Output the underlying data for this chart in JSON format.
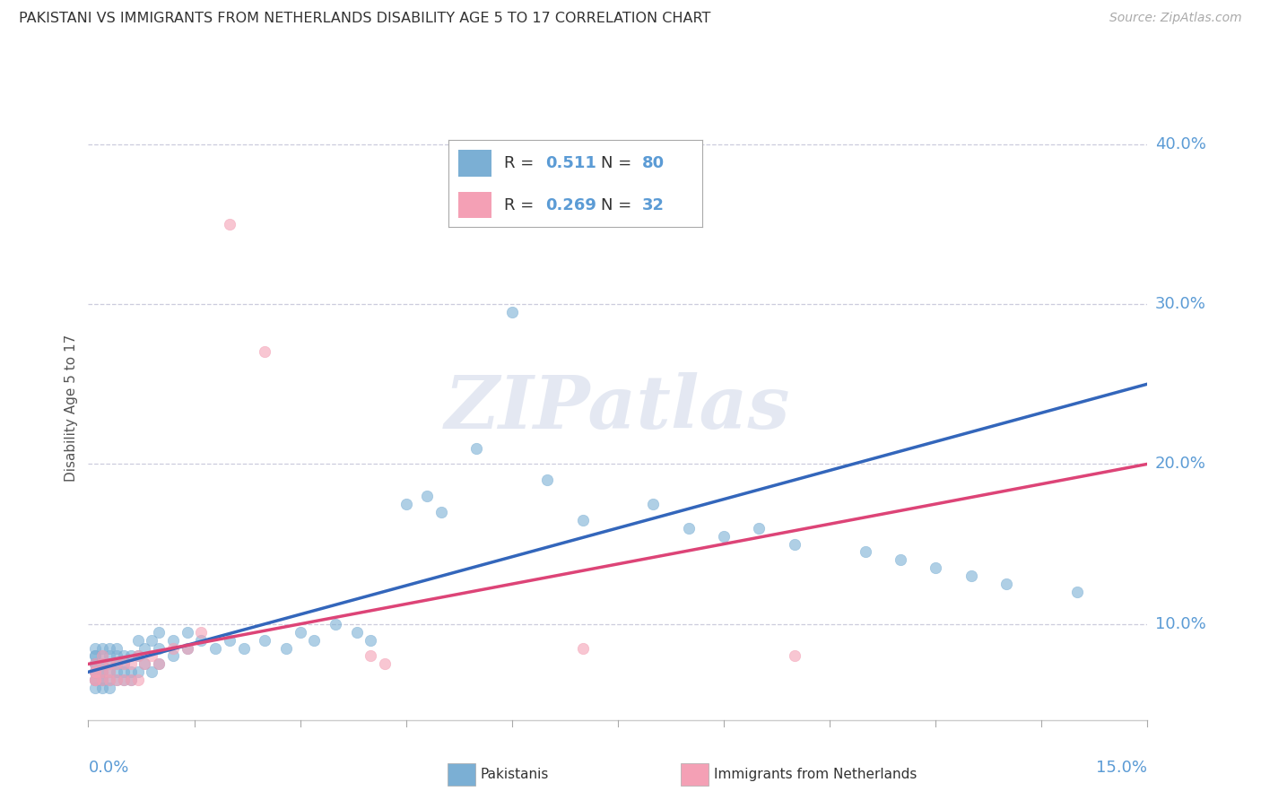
{
  "title": "PAKISTANI VS IMMIGRANTS FROM NETHERLANDS DISABILITY AGE 5 TO 17 CORRELATION CHART",
  "source": "Source: ZipAtlas.com",
  "ylabel": "Disability Age 5 to 17",
  "r_pakistani": 0.511,
  "n_pakistani": 80,
  "r_netherlands": 0.269,
  "n_netherlands": 32,
  "blue_color": "#7BAFD4",
  "blue_line_color": "#3366BB",
  "pink_color": "#F4A0B5",
  "pink_line_color": "#DD4477",
  "label_color": "#5B9BD5",
  "watermark": "ZIPatlas",
  "xmin": 0.0,
  "xmax": 0.15,
  "ymin": 0.04,
  "ymax": 0.43,
  "ytick_vals": [
    0.1,
    0.2,
    0.3,
    0.4
  ],
  "ytick_labels": [
    "10.0%",
    "20.0%",
    "30.0%",
    "40.0%"
  ],
  "xtick_left": "0.0%",
  "xtick_right": "15.0%",
  "legend_blue_label": "Pakistanis",
  "legend_pink_label": "Immigrants from Netherlands",
  "pak_x": [
    0.001,
    0.001,
    0.001,
    0.001,
    0.001,
    0.001,
    0.001,
    0.001,
    0.001,
    0.001,
    0.002,
    0.002,
    0.002,
    0.002,
    0.002,
    0.002,
    0.002,
    0.002,
    0.002,
    0.003,
    0.003,
    0.003,
    0.003,
    0.003,
    0.003,
    0.004,
    0.004,
    0.004,
    0.004,
    0.004,
    0.005,
    0.005,
    0.005,
    0.005,
    0.006,
    0.006,
    0.006,
    0.007,
    0.007,
    0.007,
    0.008,
    0.008,
    0.009,
    0.009,
    0.01,
    0.01,
    0.01,
    0.012,
    0.012,
    0.014,
    0.014,
    0.016,
    0.018,
    0.02,
    0.022,
    0.025,
    0.028,
    0.03,
    0.032,
    0.035,
    0.038,
    0.04,
    0.045,
    0.048,
    0.05,
    0.055,
    0.06,
    0.065,
    0.07,
    0.08,
    0.085,
    0.09,
    0.095,
    0.1,
    0.11,
    0.115,
    0.12,
    0.125,
    0.13,
    0.14
  ],
  "pak_y": [
    0.065,
    0.065,
    0.07,
    0.07,
    0.075,
    0.075,
    0.08,
    0.08,
    0.085,
    0.06,
    0.065,
    0.065,
    0.07,
    0.07,
    0.075,
    0.075,
    0.08,
    0.085,
    0.06,
    0.065,
    0.07,
    0.075,
    0.08,
    0.085,
    0.06,
    0.065,
    0.07,
    0.075,
    0.08,
    0.085,
    0.065,
    0.07,
    0.075,
    0.08,
    0.065,
    0.07,
    0.08,
    0.07,
    0.08,
    0.09,
    0.075,
    0.085,
    0.07,
    0.09,
    0.075,
    0.085,
    0.095,
    0.08,
    0.09,
    0.085,
    0.095,
    0.09,
    0.085,
    0.09,
    0.085,
    0.09,
    0.085,
    0.095,
    0.09,
    0.1,
    0.095,
    0.09,
    0.175,
    0.18,
    0.17,
    0.21,
    0.295,
    0.19,
    0.165,
    0.175,
    0.16,
    0.155,
    0.16,
    0.15,
    0.145,
    0.14,
    0.135,
    0.13,
    0.125,
    0.12
  ],
  "net_x": [
    0.001,
    0.001,
    0.001,
    0.001,
    0.001,
    0.002,
    0.002,
    0.002,
    0.002,
    0.003,
    0.003,
    0.003,
    0.004,
    0.004,
    0.005,
    0.005,
    0.006,
    0.006,
    0.007,
    0.007,
    0.008,
    0.009,
    0.01,
    0.012,
    0.014,
    0.016,
    0.02,
    0.025,
    0.04,
    0.042,
    0.07,
    0.1
  ],
  "net_y": [
    0.065,
    0.065,
    0.07,
    0.07,
    0.075,
    0.065,
    0.07,
    0.075,
    0.08,
    0.065,
    0.07,
    0.075,
    0.065,
    0.075,
    0.065,
    0.075,
    0.065,
    0.075,
    0.065,
    0.08,
    0.075,
    0.08,
    0.075,
    0.085,
    0.085,
    0.095,
    0.35,
    0.27,
    0.08,
    0.075,
    0.085,
    0.08
  ],
  "trend_pak_x0": 0.0,
  "trend_pak_y0": 0.07,
  "trend_pak_x1": 0.15,
  "trend_pak_y1": 0.25,
  "trend_net_x0": 0.0,
  "trend_net_y0": 0.075,
  "trend_net_x1": 0.15,
  "trend_net_y1": 0.2
}
